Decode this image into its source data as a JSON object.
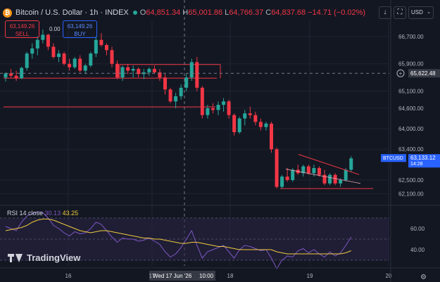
{
  "legend": {
    "title": "Bitcoin / U.S. Dollar · 1h · INDEX",
    "o_label": "O",
    "o_val": "64,851.34",
    "h_label": "H",
    "h_val": "65,001.86",
    "l_label": "L",
    "l_val": "64,766.37",
    "c_label": "C",
    "c_val": "64,837.68",
    "change": "−14.71 (−0.02%)"
  },
  "trade": {
    "sell_price": "63,149.26",
    "sell_label": "SELL",
    "buy_price": "63,149.26",
    "buy_label": "BUY",
    "spread": "0.00"
  },
  "toolbar": {
    "currency": "USD",
    "down_icon": "↓"
  },
  "rsi": {
    "label": "RSI 14 close",
    "value1": "30.13",
    "value2": "43.25",
    "ticks": [
      "60.00",
      "40.00"
    ]
  },
  "brand": {
    "name": "TradingView"
  },
  "crosshair": {
    "price_tag": "65,622.48",
    "time_label": "Wed 17 Jun '26",
    "time_value": "10:00"
  },
  "price_badge": {
    "symbol": "BTCUSD",
    "price": "63,133.12",
    "countdown": "14:28"
  },
  "colors": {
    "up": "#26a69a",
    "down": "#f23645",
    "background": "#131722",
    "rsi_line": "#7e57c2",
    "rsi_ma": "#f0c93c",
    "accent": "#2962ff"
  },
  "chart_data": {
    "type": "candlestick",
    "y_ticks": [
      "66,700.00",
      "65,900.00",
      "65,100.00",
      "64,600.00",
      "64,000.00",
      "63,400.00",
      "62,500.00",
      "62,100.00"
    ],
    "x_ticks": [
      "16",
      "17",
      "18",
      "19",
      "20"
    ],
    "candles": [
      [
        65500,
        65650,
        65380,
        65620
      ],
      [
        65620,
        65750,
        65500,
        65550
      ],
      [
        65550,
        65700,
        65400,
        65480
      ],
      [
        65480,
        65820,
        65450,
        65780
      ],
      [
        65780,
        66250,
        65700,
        66200
      ],
      [
        66200,
        66500,
        66050,
        66350
      ],
      [
        66350,
        66700,
        66150,
        66600
      ],
      [
        66600,
        66900,
        66500,
        66750
      ],
      [
        66750,
        66780,
        66300,
        66400
      ],
      [
        66400,
        66500,
        66050,
        66100
      ],
      [
        66100,
        66300,
        65950,
        66200
      ],
      [
        66200,
        66250,
        65850,
        65900
      ],
      [
        65900,
        66050,
        65700,
        65800
      ],
      [
        65800,
        66100,
        65750,
        66050
      ],
      [
        66050,
        66150,
        65650,
        65700
      ],
      [
        65700,
        65900,
        65600,
        65850
      ],
      [
        65850,
        66250,
        65800,
        66200
      ],
      [
        66200,
        66700,
        66100,
        66600
      ],
      [
        66600,
        66800,
        66400,
        66450
      ],
      [
        66450,
        66500,
        66150,
        66300
      ],
      [
        66300,
        66400,
        65800,
        65900
      ],
      [
        65900,
        66000,
        65450,
        65500
      ],
      [
        65500,
        65850,
        65400,
        65800
      ],
      [
        65800,
        65900,
        65600,
        65700
      ],
      [
        65700,
        65850,
        65500,
        65750
      ],
      [
        65750,
        65800,
        65500,
        65600
      ],
      [
        65600,
        65750,
        65450,
        65650
      ],
      [
        65650,
        65800,
        65550,
        65750
      ],
      [
        65750,
        65850,
        65600,
        65650
      ],
      [
        65650,
        65750,
        65400,
        65500
      ],
      [
        65500,
        65600,
        65000,
        65150
      ],
      [
        65150,
        65200,
        64750,
        64800
      ],
      [
        64800,
        65050,
        64600,
        64950
      ],
      [
        64950,
        65300,
        64850,
        65200
      ],
      [
        65200,
        65600,
        65100,
        65500
      ],
      [
        65500,
        66050,
        65400,
        65950
      ],
      [
        65950,
        66100,
        65100,
        65200
      ],
      [
        65200,
        65250,
        64300,
        64400
      ],
      [
        64400,
        64700,
        64300,
        64600
      ],
      [
        64600,
        64750,
        64450,
        64550
      ],
      [
        64550,
        64800,
        64400,
        64700
      ],
      [
        64700,
        64900,
        64500,
        64800
      ],
      [
        64800,
        64850,
        64300,
        64400
      ],
      [
        64400,
        64450,
        63800,
        63900
      ],
      [
        63900,
        64350,
        63850,
        64300
      ],
      [
        64300,
        64550,
        64100,
        64450
      ],
      [
        64450,
        64650,
        64300,
        64400
      ],
      [
        64400,
        64500,
        64100,
        64200
      ],
      [
        64200,
        64300,
        63950,
        64050
      ],
      [
        64050,
        64200,
        63950,
        64150
      ],
      [
        64150,
        64200,
        63300,
        63400
      ],
      [
        63400,
        63450,
        62250,
        62300
      ],
      [
        62300,
        62650,
        62250,
        62600
      ],
      [
        62600,
        62850,
        62450,
        62500
      ],
      [
        62500,
        62850,
        62450,
        62800
      ],
      [
        62800,
        62950,
        62650,
        62700
      ],
      [
        62700,
        62950,
        62600,
        62900
      ],
      [
        62900,
        62950,
        62650,
        62700
      ],
      [
        62700,
        62950,
        62600,
        62850
      ],
      [
        62850,
        62900,
        62600,
        62650
      ],
      [
        62650,
        62800,
        62350,
        62400
      ],
      [
        62400,
        62700,
        62350,
        62650
      ],
      [
        62650,
        62700,
        62350,
        62400
      ],
      [
        62400,
        62550,
        62300,
        62500
      ],
      [
        62500,
        62850,
        62450,
        62800
      ],
      [
        62800,
        63200,
        62750,
        63133
      ]
    ],
    "levels": [
      65880,
      65480,
      64640,
      62250
    ],
    "rsi_range": [
      20,
      80
    ],
    "rsi": [
      62,
      60,
      58,
      66,
      72,
      74,
      76,
      75,
      70,
      63,
      60,
      56,
      53,
      57,
      55,
      56,
      60,
      66,
      64,
      58,
      52,
      47,
      51,
      50,
      50,
      48,
      49,
      51,
      48,
      45,
      38,
      33,
      36,
      42,
      50,
      58,
      44,
      32,
      38,
      40,
      42,
      44,
      38,
      32,
      40,
      44,
      43,
      41,
      39,
      40,
      32,
      22,
      30,
      34,
      33,
      39,
      41,
      37,
      40,
      36,
      33,
      38,
      34,
      37,
      44,
      52
    ],
    "rsi_ma": [
      58,
      59,
      60,
      61,
      63,
      66,
      68,
      69,
      69,
      68,
      66,
      64,
      62,
      60,
      58,
      57,
      56,
      57,
      58,
      58,
      57,
      56,
      55,
      54,
      53,
      52,
      51,
      51,
      50,
      50,
      49,
      48,
      47,
      46,
      46,
      47,
      47,
      46,
      45,
      44,
      43,
      43,
      42,
      41,
      40,
      40,
      40,
      40,
      40,
      40,
      40,
      38,
      37,
      36,
      36,
      36,
      36,
      36,
      36,
      36,
      36,
      36,
      36,
      36,
      37,
      39
    ]
  }
}
